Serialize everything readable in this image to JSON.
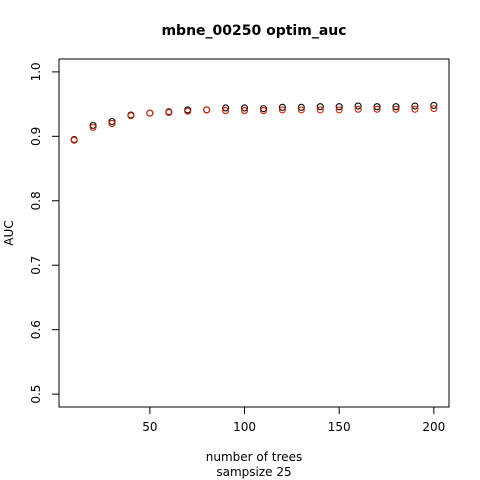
{
  "chart_data": {
    "type": "scatter",
    "title": "mbne_00250 optim_auc",
    "xlabel": "number of trees",
    "xlabel2": "sampsize 25",
    "ylabel": "AUC",
    "xlim": [
      2,
      208
    ],
    "ylim": [
      0.48,
      1.02
    ],
    "x_ticks": [
      50,
      100,
      150,
      200
    ],
    "y_ticks": [
      0.5,
      0.6,
      0.7,
      0.8,
      0.9,
      1.0
    ],
    "x_tick_labels": [
      "50",
      "100",
      "150",
      "200"
    ],
    "y_tick_labels": [
      "0.5",
      "0.6",
      "0.7",
      "0.8",
      "0.9",
      "1.0"
    ],
    "grid": false,
    "series": [
      {
        "color": "#000000",
        "x": [
          10,
          20,
          30,
          40,
          50,
          60,
          70,
          80,
          90,
          100,
          110,
          120,
          130,
          140,
          150,
          160,
          170,
          180,
          190,
          200
        ],
        "y": [
          0.895,
          0.917,
          0.923,
          0.933,
          0.936,
          0.938,
          0.941,
          0.941,
          0.944,
          0.944,
          0.943,
          0.945,
          0.945,
          0.946,
          0.946,
          0.947,
          0.946,
          0.946,
          0.947,
          0.948
        ]
      },
      {
        "color": "#cc2200",
        "x": [
          10,
          20,
          30,
          40,
          50,
          60,
          70,
          80,
          90,
          100,
          110,
          120,
          130,
          140,
          150,
          160,
          170,
          180,
          190,
          200
        ],
        "y": [
          0.894,
          0.914,
          0.92,
          0.932,
          0.936,
          0.937,
          0.939,
          0.941,
          0.94,
          0.94,
          0.94,
          0.941,
          0.941,
          0.941,
          0.941,
          0.942,
          0.942,
          0.942,
          0.942,
          0.943
        ]
      }
    ]
  }
}
